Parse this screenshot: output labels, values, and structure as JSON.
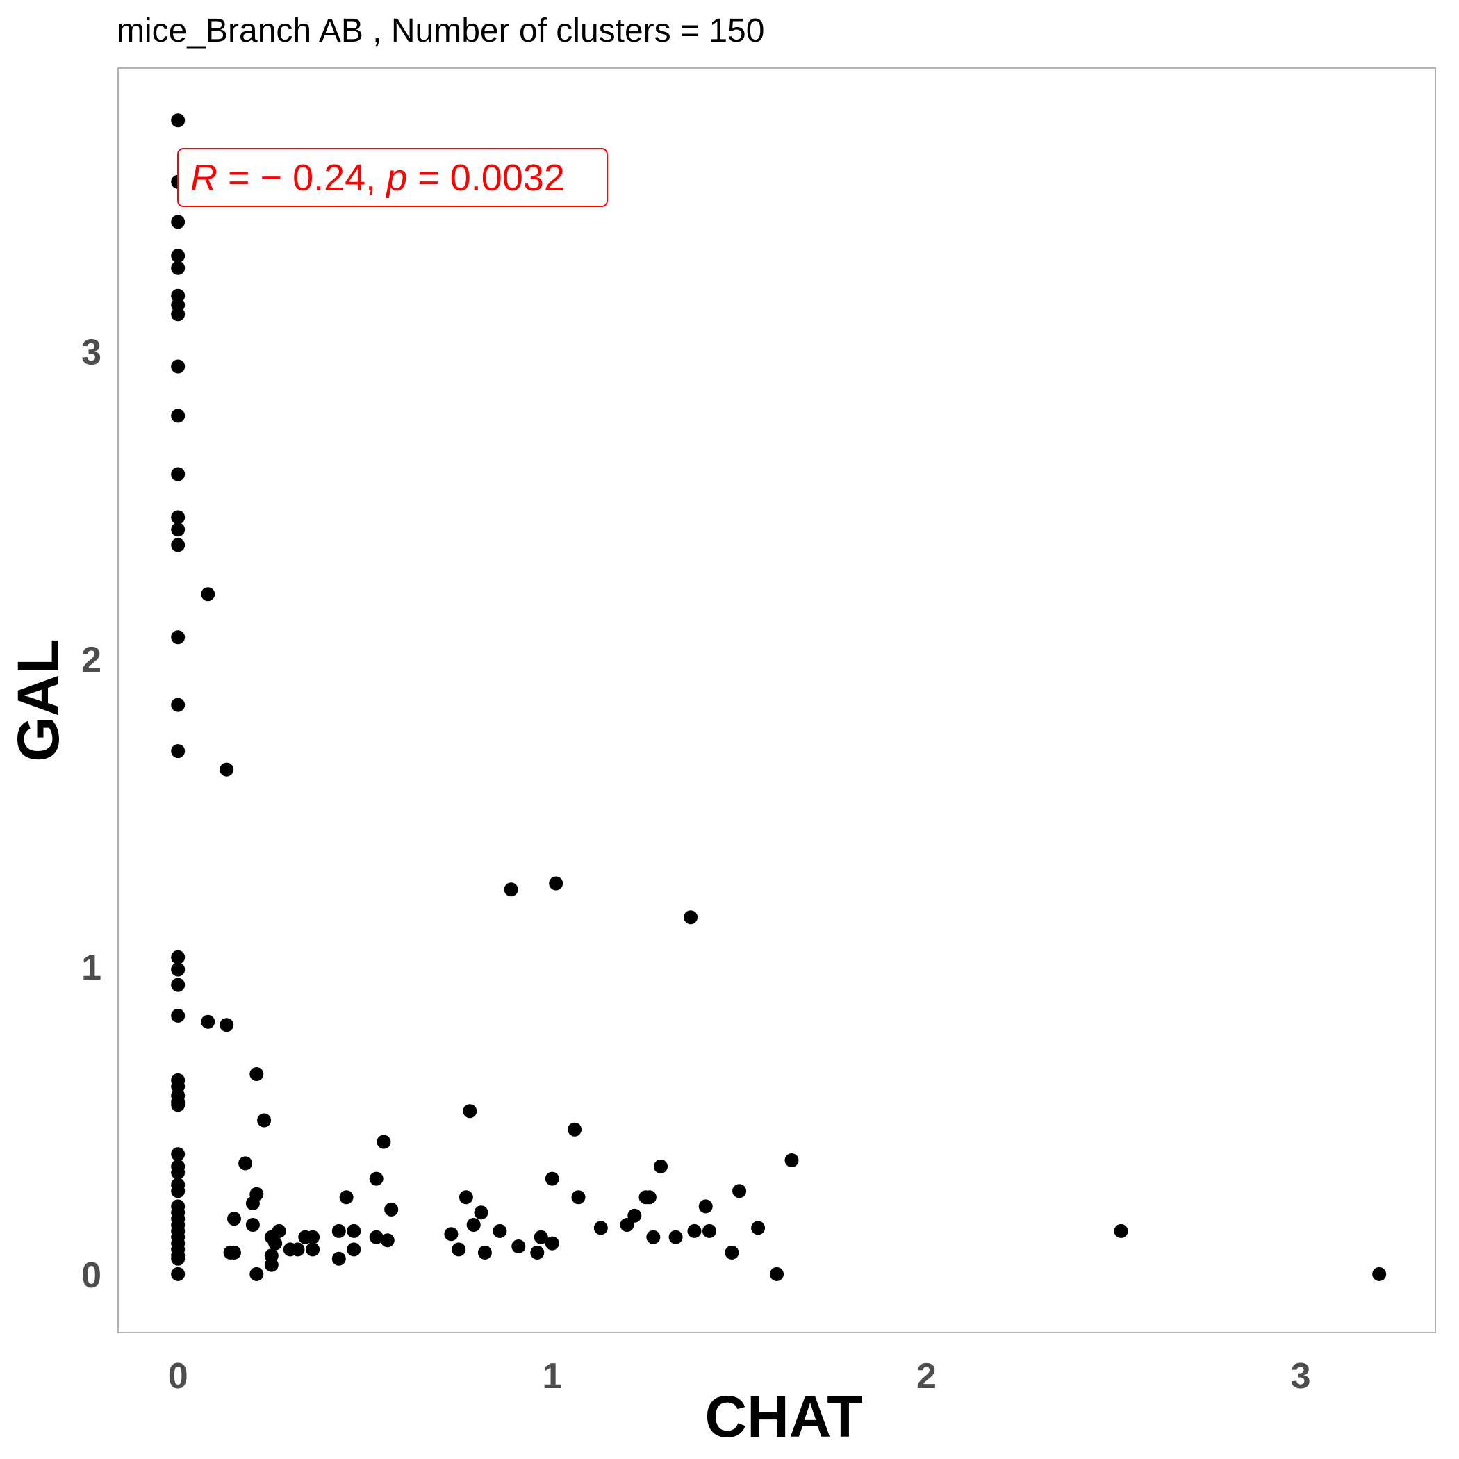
{
  "chart_data": {
    "type": "scatter",
    "title": "mice_Branch AB , Number of clusters =  150",
    "xlabel": "CHAT",
    "ylabel": "GAL",
    "xlim": [
      -0.16,
      3.36
    ],
    "ylim": [
      -0.19,
      3.92
    ],
    "xticks": [
      0,
      1,
      2,
      3
    ],
    "yticks": [
      0,
      1,
      2,
      3
    ],
    "grid": false,
    "point_color": "#000000",
    "annotation": {
      "r_symbol": "R",
      "r_text": " = − 0.24, ",
      "p_symbol": "p",
      "p_text": " = 0.0032",
      "color": "#ff0000"
    },
    "points": [
      {
        "x": 0,
        "y": 3.75
      },
      {
        "x": 0,
        "y": 3.55
      },
      {
        "x": 0,
        "y": 3.42
      },
      {
        "x": 0,
        "y": 3.31
      },
      {
        "x": 0,
        "y": 3.27
      },
      {
        "x": 0,
        "y": 3.18
      },
      {
        "x": 0,
        "y": 3.15
      },
      {
        "x": 0,
        "y": 3.12
      },
      {
        "x": 0,
        "y": 2.95
      },
      {
        "x": 0,
        "y": 2.79
      },
      {
        "x": 0,
        "y": 2.6
      },
      {
        "x": 0,
        "y": 2.46
      },
      {
        "x": 0,
        "y": 2.42
      },
      {
        "x": 0,
        "y": 2.37
      },
      {
        "x": 0,
        "y": 2.07
      },
      {
        "x": 0,
        "y": 1.85
      },
      {
        "x": 0,
        "y": 1.7
      },
      {
        "x": 0,
        "y": 1.03
      },
      {
        "x": 0,
        "y": 0.99
      },
      {
        "x": 0,
        "y": 0.94
      },
      {
        "x": 0,
        "y": 0.84
      },
      {
        "x": 0,
        "y": 0.63
      },
      {
        "x": 0,
        "y": 0.61
      },
      {
        "x": 0,
        "y": 0.58
      },
      {
        "x": 0,
        "y": 0.56
      },
      {
        "x": 0,
        "y": 0.55
      },
      {
        "x": 0,
        "y": 0.39
      },
      {
        "x": 0,
        "y": 0.35
      },
      {
        "x": 0,
        "y": 0.33
      },
      {
        "x": 0,
        "y": 0.29
      },
      {
        "x": 0,
        "y": 0.27
      },
      {
        "x": 0,
        "y": 0.22
      },
      {
        "x": 0,
        "y": 0.2
      },
      {
        "x": 0,
        "y": 0.18
      },
      {
        "x": 0,
        "y": 0.16
      },
      {
        "x": 0,
        "y": 0.14
      },
      {
        "x": 0,
        "y": 0.12
      },
      {
        "x": 0,
        "y": 0.1
      },
      {
        "x": 0,
        "y": 0.08
      },
      {
        "x": 0,
        "y": 0.06
      },
      {
        "x": 0,
        "y": 0.05
      },
      {
        "x": 0,
        "y": 0.0
      },
      {
        "x": 0.08,
        "y": 2.21
      },
      {
        "x": 0.13,
        "y": 1.64
      },
      {
        "x": 0.08,
        "y": 0.82
      },
      {
        "x": 0.13,
        "y": 0.81
      },
      {
        "x": 0.21,
        "y": 0.65
      },
      {
        "x": 0.23,
        "y": 0.5
      },
      {
        "x": 0.18,
        "y": 0.36
      },
      {
        "x": 0.21,
        "y": 0.26
      },
      {
        "x": 0.2,
        "y": 0.23
      },
      {
        "x": 0.15,
        "y": 0.18
      },
      {
        "x": 0.2,
        "y": 0.16
      },
      {
        "x": 0.27,
        "y": 0.14
      },
      {
        "x": 0.25,
        "y": 0.12
      },
      {
        "x": 0.26,
        "y": 0.1
      },
      {
        "x": 0.14,
        "y": 0.07
      },
      {
        "x": 0.15,
        "y": 0.07
      },
      {
        "x": 0.25,
        "y": 0.06
      },
      {
        "x": 0.25,
        "y": 0.03
      },
      {
        "x": 0.21,
        "y": 0.0
      },
      {
        "x": 0.3,
        "y": 0.08
      },
      {
        "x": 0.32,
        "y": 0.08
      },
      {
        "x": 0.34,
        "y": 0.12
      },
      {
        "x": 0.36,
        "y": 0.12
      },
      {
        "x": 0.36,
        "y": 0.08
      },
      {
        "x": 0.43,
        "y": 0.14
      },
      {
        "x": 0.43,
        "y": 0.05
      },
      {
        "x": 0.45,
        "y": 0.25
      },
      {
        "x": 0.47,
        "y": 0.14
      },
      {
        "x": 0.47,
        "y": 0.08
      },
      {
        "x": 0.53,
        "y": 0.31
      },
      {
        "x": 0.53,
        "y": 0.12
      },
      {
        "x": 0.55,
        "y": 0.43
      },
      {
        "x": 0.56,
        "y": 0.11
      },
      {
        "x": 0.57,
        "y": 0.21
      },
      {
        "x": 0.73,
        "y": 0.13
      },
      {
        "x": 0.75,
        "y": 0.08
      },
      {
        "x": 0.77,
        "y": 0.25
      },
      {
        "x": 0.78,
        "y": 0.53
      },
      {
        "x": 0.79,
        "y": 0.16
      },
      {
        "x": 0.81,
        "y": 0.2
      },
      {
        "x": 0.82,
        "y": 0.07
      },
      {
        "x": 0.86,
        "y": 0.14
      },
      {
        "x": 0.89,
        "y": 1.25
      },
      {
        "x": 0.91,
        "y": 0.09
      },
      {
        "x": 0.96,
        "y": 0.07
      },
      {
        "x": 0.97,
        "y": 0.12
      },
      {
        "x": 1.0,
        "y": 0.31
      },
      {
        "x": 1.0,
        "y": 0.1
      },
      {
        "x": 1.01,
        "y": 1.27
      },
      {
        "x": 1.06,
        "y": 0.47
      },
      {
        "x": 1.07,
        "y": 0.25
      },
      {
        "x": 1.13,
        "y": 0.15
      },
      {
        "x": 1.2,
        "y": 0.16
      },
      {
        "x": 1.22,
        "y": 0.19
      },
      {
        "x": 1.25,
        "y": 0.25
      },
      {
        "x": 1.26,
        "y": 0.25
      },
      {
        "x": 1.27,
        "y": 0.12
      },
      {
        "x": 1.29,
        "y": 0.35
      },
      {
        "x": 1.33,
        "y": 0.12
      },
      {
        "x": 1.37,
        "y": 1.16
      },
      {
        "x": 1.38,
        "y": 0.14
      },
      {
        "x": 1.41,
        "y": 0.22
      },
      {
        "x": 1.42,
        "y": 0.14
      },
      {
        "x": 1.48,
        "y": 0.07
      },
      {
        "x": 1.5,
        "y": 0.27
      },
      {
        "x": 1.55,
        "y": 0.15
      },
      {
        "x": 1.6,
        "y": 0.0
      },
      {
        "x": 1.64,
        "y": 0.37
      },
      {
        "x": 2.52,
        "y": 0.14
      },
      {
        "x": 3.21,
        "y": 0.0
      }
    ]
  }
}
